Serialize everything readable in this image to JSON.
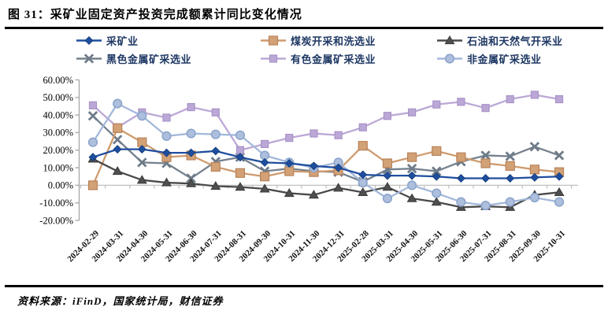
{
  "figure": {
    "title": "图 31：采矿业固定资产投资完成额累计同比变化情况",
    "source": "资料来源：iFinD，国家统计局，财信证券"
  },
  "chart_data": {
    "type": "line",
    "title": "采矿业固定资产投资完成额累计同比变化情况",
    "xlabel": "",
    "ylabel": "",
    "ylim": [
      -20,
      60
    ],
    "ytick_step": 10,
    "ytick_format": "percent-2dp",
    "grid": false,
    "legend_position": "top",
    "categories": [
      "2024-02-29",
      "2024-03-31",
      "2024-04-30",
      "2024-05-31",
      "2024-06-30",
      "2024-07-31",
      "2024-08-31",
      "2024-09-30",
      "2024-10-31",
      "2024-11-30",
      "2024-12-31",
      "2025-02-28",
      "2025-03-31",
      "2025-04-30",
      "2025-05-31",
      "2025-06-30",
      "2025-07-31",
      "2025-08-31",
      "2025-09-30",
      "2025-10-31"
    ],
    "series": [
      {
        "id": "mining",
        "name": "采矿业",
        "marker": "diamond",
        "color": "#1F4E9F",
        "fill": "#1F4E9F",
        "edge": "#16407F",
        "values": [
          16,
          20.5,
          20.5,
          18.5,
          18.5,
          19.5,
          16,
          13,
          12.5,
          11,
          10,
          6,
          5.5,
          5.5,
          5,
          4,
          4,
          4,
          4.5,
          5
        ]
      },
      {
        "id": "coal",
        "name": "煤炭开采和洗选业",
        "marker": "square",
        "color": "#CE9B6E",
        "fill": "#D2A176",
        "edge": "#B9835A",
        "values": [
          0,
          32.5,
          24.5,
          16,
          17,
          10.5,
          7,
          5,
          8,
          7.5,
          8.5,
          22.5,
          12.5,
          16,
          19.5,
          16,
          12.5,
          11,
          9,
          7.5
        ]
      },
      {
        "id": "oil-gas",
        "name": "石油和天然气开采业",
        "marker": "triangle",
        "color": "#4A4A4A",
        "fill": "#4F4F4F",
        "edge": "#3A3A3A",
        "values": [
          15,
          8,
          3,
          1.5,
          1,
          -0.5,
          -1,
          -2,
          -4.5,
          -5.5,
          -1.5,
          -4,
          -1,
          -7.5,
          -9.5,
          -12.5,
          -12,
          -12.5,
          -5.5,
          -4
        ]
      },
      {
        "id": "ferrous",
        "name": "黑色金属矿采选业",
        "marker": "x",
        "color": "#75818D",
        "fill": "#6E7B88",
        "edge": "#5F6B77",
        "values": [
          39.5,
          26,
          13,
          12.5,
          4,
          13.5,
          16,
          8,
          9.5,
          8,
          7.5,
          2,
          9,
          9.5,
          8,
          13.5,
          17,
          16.5,
          22,
          17
        ]
      },
      {
        "id": "nonferrous",
        "name": "有色金属矿采选业",
        "marker": "square",
        "color": "#BCA8D6",
        "fill": "#BCA8D6",
        "edge": "#A893C8",
        "values": [
          45.5,
          33,
          41.5,
          38.5,
          44.5,
          41.5,
          20,
          23.5,
          27,
          29.5,
          28.5,
          33,
          39.5,
          41.5,
          46,
          47.5,
          44,
          49,
          51.5,
          49
        ]
      },
      {
        "id": "nonmetal",
        "name": "非金属矿采选业",
        "marker": "circle",
        "color": "#A3B8DA",
        "fill": "#AEBFDE",
        "edge": "#8CA5CC",
        "values": [
          24.5,
          46.5,
          39.5,
          28,
          29.5,
          29,
          28.5,
          17,
          13,
          10,
          13,
          1.5,
          -7.5,
          0,
          -4.5,
          -9.5,
          -11.5,
          -9.5,
          -7,
          -9.5
        ]
      }
    ],
    "draw_order": [
      "ferrous",
      "nonferrous",
      "coal",
      "oil-gas",
      "nonmetal",
      "mining"
    ]
  }
}
